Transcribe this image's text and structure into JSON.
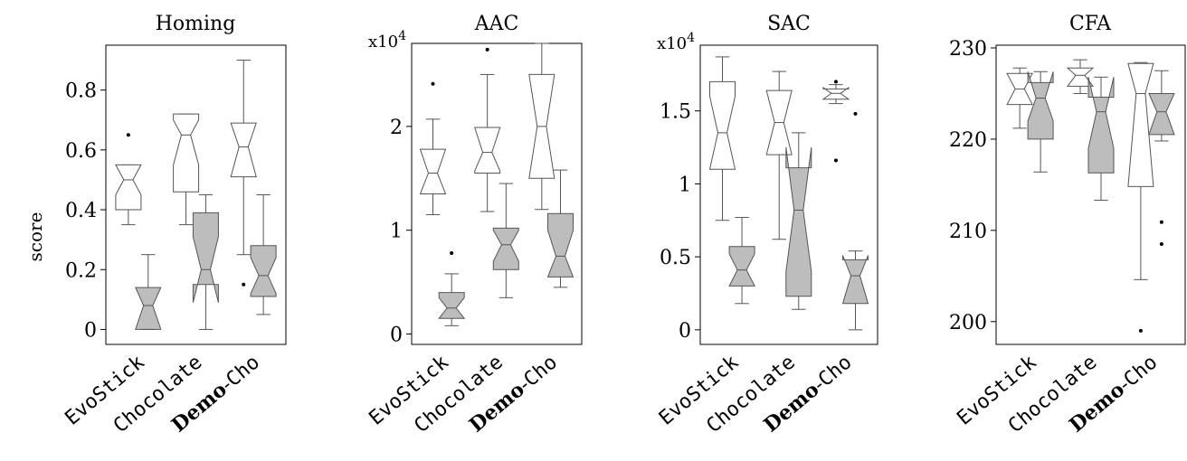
{
  "figure": {
    "ylabel": "score",
    "category_labels": [
      {
        "parts": [
          {
            "text": "EvoStick",
            "style": "mono"
          }
        ]
      },
      {
        "parts": [
          {
            "text": "Chocolate",
            "style": "mono"
          }
        ]
      },
      {
        "parts": [
          {
            "text": "Demo",
            "style": "bold"
          },
          {
            "text": "-",
            "style": "serif"
          },
          {
            "text": "Cho",
            "style": "mono"
          }
        ]
      }
    ]
  },
  "chart_data": [
    {
      "type": "box",
      "title": "Homing",
      "multiplier": "",
      "ylim": [
        -0.05,
        0.95
      ],
      "yticks": [
        0,
        0.2,
        0.4,
        0.6,
        0.8
      ],
      "yticklabels": [
        "0",
        "0.2",
        "0.4",
        "0.6",
        "0.8"
      ],
      "categories": [
        "EvoStick",
        "Chocolate",
        "Demo-Cho"
      ],
      "series": [
        {
          "name": "white",
          "fill": "#ffffff",
          "boxes": [
            {
              "min": 0.35,
              "q1": 0.4,
              "median": 0.5,
              "q3": 0.55,
              "max": 0.55,
              "notch_low": 0.45,
              "notch_high": 0.55,
              "outliers": [
                0.65
              ]
            },
            {
              "min": 0.35,
              "q1": 0.46,
              "median": 0.65,
              "q3": 0.72,
              "max": 0.72,
              "notch_low": 0.55,
              "notch_high": 0.7,
              "outliers": []
            },
            {
              "min": 0.25,
              "q1": 0.51,
              "median": 0.61,
              "q3": 0.69,
              "max": 0.9,
              "notch_low": 0.51,
              "notch_high": 0.69,
              "outliers": [
                0.15
              ]
            }
          ]
        },
        {
          "name": "gray",
          "fill": "#bdbdbd",
          "boxes": [
            {
              "min": 0.0,
              "q1": 0.0,
              "median": 0.08,
              "q3": 0.14,
              "max": 0.25,
              "notch_low": 0.0,
              "notch_high": 0.14,
              "outliers": []
            },
            {
              "min": 0.0,
              "q1": 0.15,
              "median": 0.2,
              "q3": 0.39,
              "max": 0.45,
              "notch_low": 0.09,
              "notch_high": 0.31,
              "outliers": []
            },
            {
              "min": 0.05,
              "q1": 0.11,
              "median": 0.18,
              "q3": 0.28,
              "max": 0.45,
              "notch_low": 0.12,
              "notch_high": 0.24,
              "outliers": []
            }
          ]
        }
      ]
    },
    {
      "type": "box",
      "title": "AAC",
      "multiplier": "x10^4",
      "ylim": [
        -0.1,
        2.8
      ],
      "yticks": [
        0,
        1,
        2
      ],
      "yticklabels": [
        "0",
        "1",
        "2"
      ],
      "categories": [
        "EvoStick",
        "Chocolate",
        "Demo-Cho"
      ],
      "series": [
        {
          "name": "white",
          "fill": "#ffffff",
          "boxes": [
            {
              "min": 1.15,
              "q1": 1.35,
              "median": 1.55,
              "q3": 1.78,
              "max": 2.07,
              "notch_low": 1.35,
              "notch_high": 1.78,
              "outliers": [
                2.41
              ]
            },
            {
              "min": 1.18,
              "q1": 1.55,
              "median": 1.75,
              "q3": 1.99,
              "max": 2.5,
              "notch_low": 1.57,
              "notch_high": 1.99,
              "outliers": [
                2.74
              ]
            },
            {
              "min": 1.2,
              "q1": 1.5,
              "median": 2.0,
              "q3": 2.5,
              "max": 2.8,
              "notch_low": 1.5,
              "notch_high": 2.5,
              "outliers": []
            }
          ]
        },
        {
          "name": "gray",
          "fill": "#bdbdbd",
          "boxes": [
            {
              "min": 0.08,
              "q1": 0.15,
              "median": 0.25,
              "q3": 0.4,
              "max": 0.58,
              "notch_low": 0.15,
              "notch_high": 0.35,
              "outliers": [
                0.78
              ]
            },
            {
              "min": 0.35,
              "q1": 0.62,
              "median": 0.86,
              "q3": 1.02,
              "max": 1.45,
              "notch_low": 0.7,
              "notch_high": 1.0,
              "outliers": []
            },
            {
              "min": 0.45,
              "q1": 0.55,
              "median": 0.75,
              "q3": 1.16,
              "max": 1.58,
              "notch_low": 0.55,
              "notch_high": 1.0,
              "outliers": []
            }
          ]
        }
      ]
    },
    {
      "type": "box",
      "title": "SAC",
      "multiplier": "x10^4",
      "ylim": [
        -0.1,
        1.95
      ],
      "yticks": [
        0,
        0.5,
        1,
        1.5
      ],
      "yticklabels": [
        "0",
        "0.5",
        "1",
        "1.5"
      ],
      "categories": [
        "EvoStick",
        "Chocolate",
        "Demo-Cho"
      ],
      "series": [
        {
          "name": "white",
          "fill": "#ffffff",
          "boxes": [
            {
              "min": 0.75,
              "q1": 1.1,
              "median": 1.35,
              "q3": 1.7,
              "max": 1.87,
              "notch_low": 1.1,
              "notch_high": 1.6,
              "outliers": []
            },
            {
              "min": 0.62,
              "q1": 1.2,
              "median": 1.42,
              "q3": 1.64,
              "max": 1.77,
              "notch_low": 1.2,
              "notch_high": 1.64,
              "outliers": []
            },
            {
              "min": 1.55,
              "q1": 1.58,
              "median": 1.62,
              "q3": 1.65,
              "max": 1.68,
              "notch_low": 1.58,
              "notch_high": 1.66,
              "outliers": [
                1.7,
                1.16
              ]
            }
          ]
        },
        {
          "name": "gray",
          "fill": "#bdbdbd",
          "boxes": [
            {
              "min": 0.18,
              "q1": 0.3,
              "median": 0.41,
              "q3": 0.57,
              "max": 0.77,
              "notch_low": 0.3,
              "notch_high": 0.52,
              "outliers": []
            },
            {
              "min": 0.14,
              "q1": 0.23,
              "median": 0.82,
              "q3": 1.11,
              "max": 1.35,
              "notch_low": 0.4,
              "notch_high": 1.25,
              "outliers": []
            },
            {
              "min": 0.0,
              "q1": 0.18,
              "median": 0.37,
              "q3": 0.48,
              "max": 0.54,
              "notch_low": 0.18,
              "notch_high": 0.51,
              "outliers": [
                1.48
              ]
            }
          ]
        }
      ]
    },
    {
      "type": "box",
      "title": "CFA",
      "multiplier": "",
      "ylim": [
        197.5,
        230.3
      ],
      "yticks": [
        200,
        210,
        220,
        230
      ],
      "yticklabels": [
        "200",
        "210",
        "220",
        "230"
      ],
      "categories": [
        "EvoStick",
        "Chocolate",
        "Demo-Cho"
      ],
      "series": [
        {
          "name": "white",
          "fill": "#ffffff",
          "boxes": [
            {
              "min": 221.2,
              "q1": 223.8,
              "median": 225.5,
              "q3": 227.2,
              "max": 227.8,
              "notch_low": 223.8,
              "notch_high": 227.2,
              "outliers": []
            },
            {
              "min": 225.0,
              "q1": 225.8,
              "median": 227.0,
              "q3": 227.8,
              "max": 228.7,
              "notch_low": 225.8,
              "notch_high": 227.8,
              "outliers": []
            },
            {
              "min": 204.6,
              "q1": 214.8,
              "median": 225.0,
              "q3": 228.3,
              "max": 228.4,
              "notch_low": 214.8,
              "notch_high": 228.3,
              "outliers": [
                199.0
              ]
            }
          ]
        },
        {
          "name": "gray",
          "fill": "#bdbdbd",
          "boxes": [
            {
              "min": 216.4,
              "q1": 220.0,
              "median": 224.5,
              "q3": 226.2,
              "max": 227.4,
              "notch_low": 222.0,
              "notch_high": 227.4,
              "outliers": []
            },
            {
              "min": 213.3,
              "q1": 216.3,
              "median": 223.0,
              "q3": 224.6,
              "max": 226.8,
              "notch_low": 219.0,
              "notch_high": 226.8,
              "outliers": []
            },
            {
              "min": 219.8,
              "q1": 220.5,
              "median": 223.0,
              "q3": 225.0,
              "max": 227.5,
              "notch_low": 220.5,
              "notch_high": 225.0,
              "outliers": [
                210.9,
                208.5
              ]
            }
          ]
        }
      ]
    }
  ]
}
